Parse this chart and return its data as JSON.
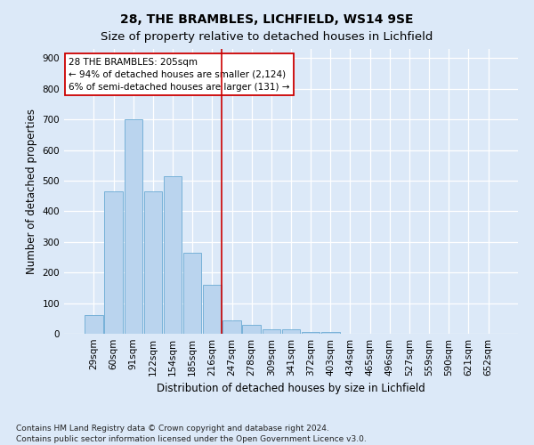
{
  "title": "28, THE BRAMBLES, LICHFIELD, WS14 9SE",
  "subtitle": "Size of property relative to detached houses in Lichfield",
  "xlabel": "Distribution of detached houses by size in Lichfield",
  "ylabel": "Number of detached properties",
  "categories": [
    "29sqm",
    "60sqm",
    "91sqm",
    "122sqm",
    "154sqm",
    "185sqm",
    "216sqm",
    "247sqm",
    "278sqm",
    "309sqm",
    "341sqm",
    "372sqm",
    "403sqm",
    "434sqm",
    "465sqm",
    "496sqm",
    "527sqm",
    "559sqm",
    "590sqm",
    "621sqm",
    "652sqm"
  ],
  "values": [
    60,
    465,
    700,
    465,
    515,
    265,
    160,
    45,
    30,
    15,
    15,
    7,
    5,
    0,
    0,
    0,
    0,
    0,
    0,
    0,
    0
  ],
  "bar_color": "#bad4ee",
  "bar_edge_color": "#6aaad4",
  "ref_line_x": 6.5,
  "ref_line_color": "#cc0000",
  "annotation_text": "28 THE BRAMBLES: 205sqm\n← 94% of detached houses are smaller (2,124)\n6% of semi-detached houses are larger (131) →",
  "annotation_box_color": "white",
  "annotation_box_edge": "#cc0000",
  "ylim": [
    0,
    930
  ],
  "yticks": [
    0,
    100,
    200,
    300,
    400,
    500,
    600,
    700,
    800,
    900
  ],
  "footer": "Contains HM Land Registry data © Crown copyright and database right 2024.\nContains public sector information licensed under the Open Government Licence v3.0.",
  "bg_color": "#dce9f8",
  "grid_color": "#ffffff",
  "title_fontsize": 10,
  "axis_label_fontsize": 8.5,
  "tick_fontsize": 7.5,
  "footer_fontsize": 6.5,
  "annotation_fontsize": 7.5
}
